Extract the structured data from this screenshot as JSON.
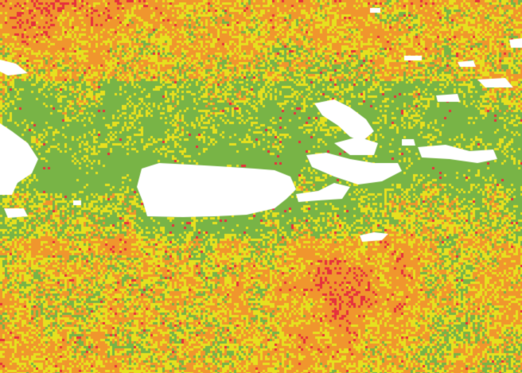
{
  "map": {
    "palette": {
      "land": "#ffffff",
      "low": "#78b446",
      "moderate": "#e6e01e",
      "high": "#f0962d",
      "very_high": "#e6323c"
    }
  }
}
